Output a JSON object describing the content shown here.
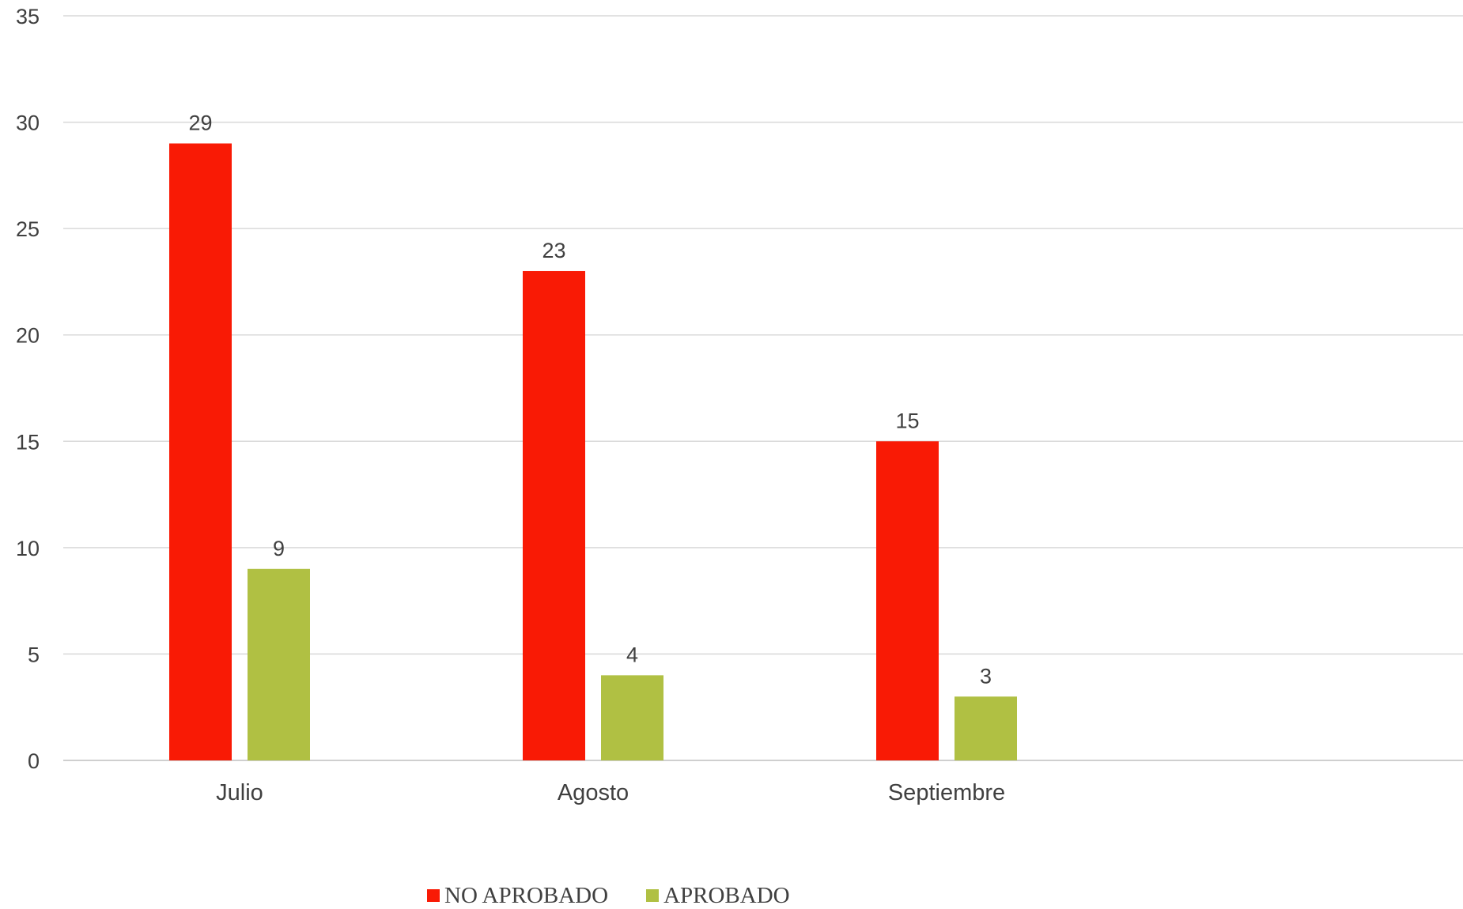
{
  "chart_data": {
    "type": "bar",
    "title": "",
    "xlabel": "",
    "ylabel": "",
    "categories": [
      "Julio",
      "Agosto",
      "Septiembre"
    ],
    "series": [
      {
        "name": "NO APROBADO",
        "values": [
          29,
          23,
          15
        ],
        "color": "#F91A05"
      },
      {
        "name": "APROBADO",
        "values": [
          9,
          4,
          3
        ],
        "color": "#B0C043"
      }
    ],
    "ylim": [
      0,
      35
    ],
    "yticks": [
      0,
      5,
      10,
      15,
      20,
      25,
      30,
      35
    ],
    "grid": true,
    "legend": "bottom",
    "data_labels": true
  }
}
